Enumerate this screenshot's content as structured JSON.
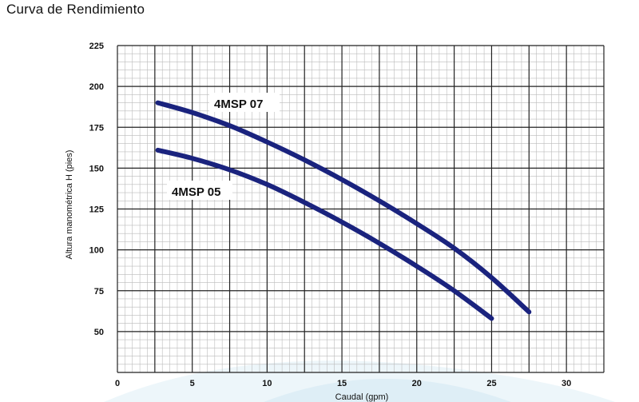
{
  "title": "Curva de Rendimiento",
  "chart_data": {
    "type": "line",
    "title": "Curva de Rendimiento",
    "xlabel": "Caudal (gpm)",
    "ylabel": "Altura manométrica H (pies)",
    "xlim": [
      0,
      32.5
    ],
    "ylim": [
      25,
      225
    ],
    "x_ticks": [
      0,
      5,
      10,
      15,
      20,
      25,
      30
    ],
    "y_ticks": [
      50,
      75,
      100,
      125,
      150,
      175,
      200,
      225
    ],
    "grid": true,
    "colors": {
      "series": "#1a237e",
      "grid_major": "#222222",
      "grid_minor": "#bbbbbb"
    },
    "series": [
      {
        "name": "4MSP 07",
        "x": [
          2.7,
          5,
          7.5,
          10,
          12.5,
          15,
          17.5,
          20,
          22.5,
          25,
          27.5
        ],
        "y": [
          190,
          184,
          176,
          166,
          155,
          143,
          130,
          116,
          101,
          83,
          62
        ]
      },
      {
        "name": "4MSP 05",
        "x": [
          2.7,
          5,
          7.5,
          10,
          12.5,
          15,
          17.5,
          20,
          22.5,
          25
        ],
        "y": [
          161,
          156,
          149,
          140,
          129,
          117,
          104,
          90,
          75,
          58
        ]
      }
    ]
  }
}
